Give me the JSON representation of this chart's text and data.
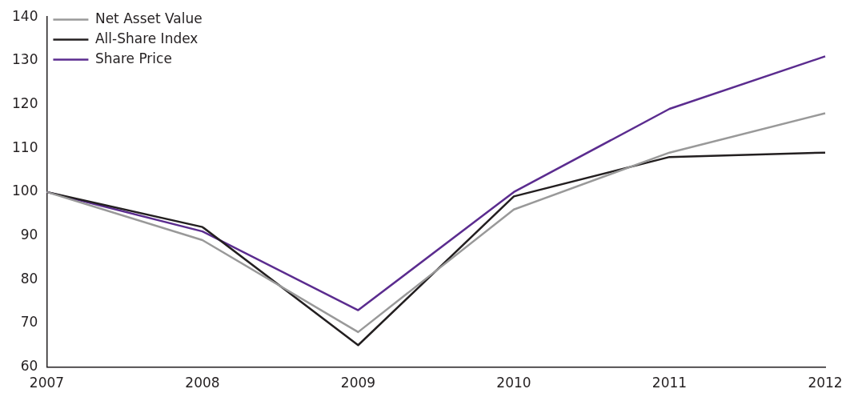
{
  "chart_data": {
    "type": "line",
    "categories": [
      "2007",
      "2008",
      "2009",
      "2010",
      "2011",
      "2012"
    ],
    "series": [
      {
        "name": "Net Asset Value",
        "color": "#999999",
        "values": [
          100,
          89,
          68,
          96,
          109,
          118
        ]
      },
      {
        "name": "All-Share Index",
        "color": "#231f20",
        "values": [
          100,
          92,
          65,
          99,
          108,
          109
        ]
      },
      {
        "name": "Share Price",
        "color": "#5b2c8f",
        "values": [
          100,
          91,
          73,
          100,
          119,
          131
        ]
      }
    ],
    "ylim": [
      60,
      140
    ],
    "yticks": [
      60,
      70,
      80,
      90,
      100,
      110,
      120,
      130,
      140
    ],
    "grid": false,
    "legend": "top left",
    "marker": "none",
    "line_style": "solid"
  }
}
